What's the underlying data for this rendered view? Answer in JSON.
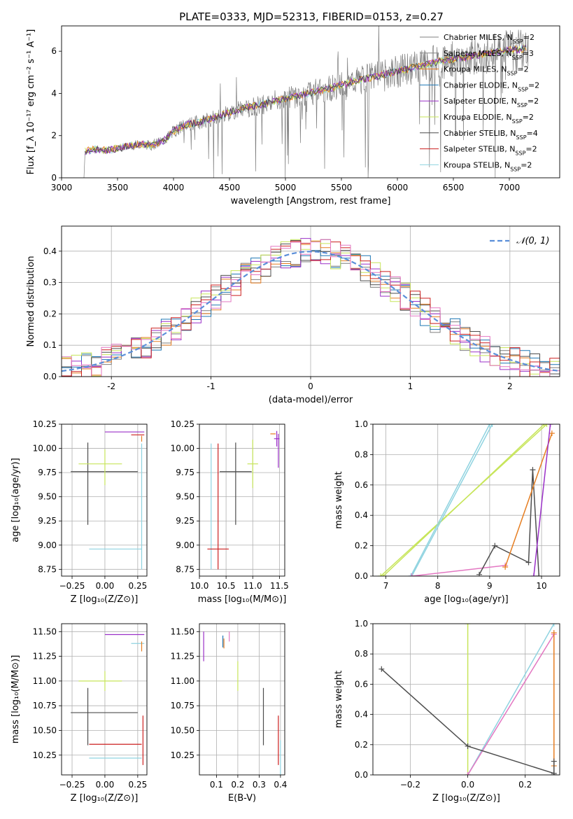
{
  "title": "PLATE=0333, MJD=52313, FIBERID=0153, z=0.27",
  "colors": {
    "chabrier_miles": "#7f7f7f",
    "salpeter_miles": "#808080",
    "kroupa_miles": "#e67e22",
    "chabrier_elodie": "#1f77b4",
    "salpeter_elodie": "#9b30c8",
    "kroupa_elodie": "#c7e55a",
    "chabrier_stelib": "#4d4d4d",
    "salpeter_stelib": "#cc1f1f",
    "kroupa_stelib": "#8fd3e0",
    "pink": "#e377c2",
    "dashed": "#5b8fd9"
  },
  "chart_data": [
    {
      "type": "line",
      "name": "spectrum",
      "xlabel": "wavelength [Angstrom, rest frame]",
      "ylabel": "Flux [f_λ 10⁻¹⁷ erg cm⁻² s⁻¹ A⁻¹]",
      "xlim": [
        3000,
        7450
      ],
      "ylim": [
        0,
        7.2
      ],
      "xticks": [
        3000,
        3500,
        4000,
        4500,
        5000,
        5500,
        6000,
        6500,
        7000
      ],
      "yticks": [
        0,
        2,
        4,
        6
      ],
      "grid": false,
      "legend_position": "top-right",
      "legend": [
        {
          "label": "Chabrier MILES, N",
          "sub": "SSP",
          "suffix": "=2",
          "color_key": "chabrier_miles"
        },
        {
          "label": "Salpeter MILES, N",
          "sub": "SSP",
          "suffix": "=3",
          "color_key": "salpeter_miles"
        },
        {
          "label": "Kroupa MILES, N",
          "sub": "SSP",
          "suffix": "=2",
          "color_key": "kroupa_miles"
        },
        {
          "label": "Chabrier ELODIE, N",
          "sub": "SSP",
          "suffix": "=2",
          "color_key": "chabrier_elodie"
        },
        {
          "label": "Salpeter ELODIE, N",
          "sub": "SSP",
          "suffix": "=2",
          "color_key": "salpeter_elodie"
        },
        {
          "label": "Kroupa ELODIE, N",
          "sub": "SSP",
          "suffix": "=2",
          "color_key": "kroupa_elodie"
        },
        {
          "label": "Chabrier STELIB, N",
          "sub": "SSP",
          "suffix": "=4",
          "color_key": "chabrier_stelib"
        },
        {
          "label": "Salpeter STELIB, N",
          "sub": "SSP",
          "suffix": "=2",
          "color_key": "salpeter_stelib"
        },
        {
          "label": "Kroupa STELIB, N",
          "sub": "SSP",
          "suffix": "=2",
          "color_key": "kroupa_stelib"
        }
      ],
      "continuum": {
        "x": [
          3200,
          3300,
          3400,
          3500,
          3600,
          3700,
          3800,
          3900,
          4000,
          4100,
          4200,
          4300,
          4400,
          4500,
          4600,
          4800,
          5000,
          5200,
          5400,
          5600,
          5800,
          6000,
          6200,
          6400,
          6600,
          6800,
          7000,
          7200
        ],
        "y": [
          1.25,
          1.35,
          1.3,
          1.4,
          1.5,
          1.6,
          1.55,
          1.7,
          2.2,
          2.5,
          2.6,
          2.75,
          2.9,
          3.1,
          3.25,
          3.5,
          3.75,
          4.0,
          4.25,
          4.55,
          4.8,
          5.05,
          5.3,
          5.55,
          5.7,
          5.9,
          6.05,
          6.15
        ]
      }
    },
    {
      "type": "bar",
      "name": "residual-histogram",
      "xlabel": "(data-model)/error",
      "ylabel": "Normed distribution",
      "xlim": [
        -2.5,
        2.5
      ],
      "ylim": [
        0,
        0.48
      ],
      "xticks": [
        -2,
        -1,
        0,
        1,
        2
      ],
      "yticks": [
        0.0,
        0.1,
        0.2,
        0.3,
        0.4
      ],
      "grid": true,
      "legend_position": "top-right",
      "legend_label": "𝒩(0, 1)",
      "bin_width": 0.1,
      "series": [
        {
          "color_key": "chabrier_miles",
          "phase": 0.3
        },
        {
          "color_key": "kroupa_miles",
          "phase": 1.1
        },
        {
          "color_key": "chabrier_elodie",
          "phase": 2.0
        },
        {
          "color_key": "salpeter_elodie",
          "phase": 2.9
        },
        {
          "color_key": "kroupa_elodie",
          "phase": 3.7
        },
        {
          "color_key": "chabrier_stelib",
          "phase": 4.6
        },
        {
          "color_key": "salpeter_stelib",
          "phase": 5.4
        },
        {
          "color_key": "pink",
          "phase": 6.2
        }
      ],
      "gaussian": {
        "mean": 0,
        "sigma": 1
      }
    },
    {
      "type": "scatter",
      "name": "age-vs-Z",
      "xlabel": "Z [log₁₀(Z/Z⊙)]",
      "ylabel": "age  [log₁₀(age/yr)]",
      "xlim": [
        -0.33,
        0.32
      ],
      "ylim": [
        8.68,
        10.25
      ],
      "xticks": [
        -0.25,
        0.0,
        0.25
      ],
      "xticklabels": [
        "−0.25",
        "0.00",
        "0.25"
      ],
      "yticks": [
        8.75,
        9.0,
        9.25,
        9.5,
        9.75,
        10.0,
        10.25
      ],
      "yticklabels": [
        "8.75",
        "9.00",
        "9.25",
        "9.50",
        "9.75",
        "10.00",
        "10.25"
      ],
      "grid": true,
      "errorbars": [
        {
          "x": -0.13,
          "y": 9.76,
          "xerr": [
            0.13,
            0.38
          ],
          "yerr": [
            0.55,
            0.3
          ],
          "color_key": "chabrier_stelib"
        },
        {
          "x": 0.0,
          "y": 9.84,
          "xerr": [
            0.2,
            0.13
          ],
          "yerr": [
            0.22,
            0.15
          ],
          "color_key": "kroupa_elodie"
        },
        {
          "x": 0.08,
          "y": 8.96,
          "xerr": [
            0.2,
            0.2
          ],
          "yerr": [
            0.0,
            0.0
          ],
          "color_key": "kroupa_stelib"
        },
        {
          "x": 0.28,
          "y": 9.4,
          "xerr": [
            0.0,
            0.0
          ],
          "yerr": [
            0.65,
            0.65
          ],
          "color_key": "kroupa_stelib"
        },
        {
          "x": 0.15,
          "y": 10.17,
          "xerr": [
            0.15,
            0.15
          ],
          "yerr": [
            0.0,
            0.0
          ],
          "color_key": "salpeter_elodie"
        },
        {
          "x": 0.25,
          "y": 10.14,
          "xerr": [
            0.05,
            0.05
          ],
          "yerr": [
            0.0,
            0.0
          ],
          "color_key": "salpeter_stelib"
        },
        {
          "x": 0.28,
          "y": 10.1,
          "xerr": [
            0.0,
            0.0
          ],
          "yerr": [
            0.03,
            0.03
          ],
          "color_key": "kroupa_miles"
        }
      ]
    },
    {
      "type": "scatter",
      "name": "age-vs-mass",
      "xlabel": "mass [log₁₀(M/M⊙)]",
      "ylabel": "",
      "xlim": [
        10.0,
        11.6
      ],
      "ylim": [
        8.68,
        10.25
      ],
      "xticks": [
        10.0,
        10.5,
        11.0,
        11.5
      ],
      "xticklabels": [
        "10.0",
        "10.5",
        "11.0",
        "11.5"
      ],
      "yticks": [
        8.75,
        9.0,
        9.25,
        9.5,
        9.75,
        10.0,
        10.25
      ],
      "yticklabels": [
        "8.75",
        "9.00",
        "9.25",
        "9.50",
        "9.75",
        "10.00",
        "10.25"
      ],
      "grid": true,
      "errorbars": [
        {
          "x": 10.68,
          "y": 9.76,
          "xerr": [
            0.3,
            0.3
          ],
          "yerr": [
            0.55,
            0.3
          ],
          "color_key": "chabrier_stelib"
        },
        {
          "x": 10.35,
          "y": 9.4,
          "xerr": [
            0.0,
            0.0
          ],
          "yerr": [
            0.65,
            0.65
          ],
          "color_key": "salpeter_stelib"
        },
        {
          "x": 10.22,
          "y": 9.4,
          "xerr": [
            0.0,
            0.0
          ],
          "yerr": [
            0.65,
            0.65
          ],
          "color_key": "kroupa_stelib"
        },
        {
          "x": 10.35,
          "y": 8.96,
          "xerr": [
            0.2,
            0.2
          ],
          "yerr": [
            0.0,
            0.0
          ],
          "color_key": "salpeter_stelib"
        },
        {
          "x": 11.0,
          "y": 9.84,
          "xerr": [
            0.1,
            0.1
          ],
          "yerr": [
            0.25,
            0.25
          ],
          "color_key": "kroupa_elodie"
        },
        {
          "x": 11.45,
          "y": 10.1,
          "xerr": [
            0.05,
            0.05
          ],
          "yerr": [
            0.08,
            0.08
          ],
          "color_key": "salpeter_elodie"
        },
        {
          "x": 11.48,
          "y": 10.05,
          "xerr": [
            0.0,
            0.0
          ],
          "yerr": [
            0.25,
            0.1
          ],
          "color_key": "salpeter_elodie"
        },
        {
          "x": 11.38,
          "y": 10.15,
          "xerr": [
            0.05,
            0.05
          ],
          "yerr": [
            0.0,
            0.0
          ],
          "color_key": "kroupa_miles"
        }
      ]
    },
    {
      "type": "line",
      "name": "mass-weight-vs-age",
      "xlabel": "age  [log₁₀(age/yr)]",
      "ylabel": "mass weight",
      "xlim": [
        6.75,
        10.35
      ],
      "ylim": [
        0,
        1.0
      ],
      "xticks": [
        7,
        8,
        9,
        10
      ],
      "yticks": [
        0.0,
        0.2,
        0.4,
        0.6,
        0.8,
        1.0
      ],
      "yticklabels": [
        "0.0",
        "0.2",
        "0.4",
        "0.6",
        "0.8",
        "1.0"
      ],
      "grid": true,
      "series": [
        {
          "color_key": "kroupa_elodie",
          "x": [
            6.9,
            10.1
          ],
          "y": [
            0.0,
            1.0
          ]
        },
        {
          "color_key": "kroupa_elodie",
          "x": [
            6.95,
            10.05
          ],
          "y": [
            0.0,
            1.0
          ]
        },
        {
          "color_key": "kroupa_stelib",
          "x": [
            7.48,
            9.0
          ],
          "y": [
            0.0,
            1.0
          ]
        },
        {
          "color_key": "kroupa_stelib",
          "x": [
            7.5,
            9.05
          ],
          "y": [
            0.0,
            1.0
          ]
        },
        {
          "color_key": "pink",
          "x": [
            7.5,
            9.3
          ],
          "y": [
            0.0,
            0.07
          ]
        },
        {
          "color_key": "chabrier_stelib",
          "x": [
            8.8,
            9.1,
            9.75,
            9.83,
            9.95
          ],
          "y": [
            0.01,
            0.2,
            0.09,
            0.7,
            0.0
          ]
        },
        {
          "color_key": "kroupa_miles",
          "x": [
            9.3,
            10.2
          ],
          "y": [
            0.06,
            0.94
          ]
        },
        {
          "color_key": "salpeter_elodie",
          "x": [
            9.85,
            10.17
          ],
          "y": [
            0.0,
            1.0
          ]
        }
      ]
    },
    {
      "type": "scatter",
      "name": "mass-vs-Z",
      "xlabel": "Z [log₁₀(Z/Z⊙)]",
      "ylabel": "mass [log₁₀(M/M⊙)]",
      "xlim": [
        -0.33,
        0.32
      ],
      "ylim": [
        10.05,
        11.58
      ],
      "xticks": [
        -0.25,
        0.0,
        0.25
      ],
      "xticklabels": [
        "−0.25",
        "0.00",
        "0.25"
      ],
      "yticks": [
        10.25,
        10.5,
        10.75,
        11.0,
        11.25,
        11.5
      ],
      "yticklabels": [
        "10.25",
        "10.50",
        "10.75",
        "11.00",
        "11.25",
        "11.50"
      ],
      "grid": true,
      "errorbars": [
        {
          "x": -0.13,
          "y": 10.68,
          "xerr": [
            0.13,
            0.38
          ],
          "yerr": [
            0.33,
            0.25
          ],
          "color_key": "chabrier_stelib"
        },
        {
          "x": 0.0,
          "y": 11.0,
          "xerr": [
            0.2,
            0.13
          ],
          "yerr": [
            0.1,
            0.1
          ],
          "color_key": "kroupa_elodie"
        },
        {
          "x": 0.08,
          "y": 10.36,
          "xerr": [
            0.2,
            0.2
          ],
          "yerr": [
            0.0,
            0.0
          ],
          "color_key": "salpeter_stelib"
        },
        {
          "x": 0.08,
          "y": 10.22,
          "xerr": [
            0.2,
            0.2
          ],
          "yerr": [
            0.0,
            0.0
          ],
          "color_key": "kroupa_stelib"
        },
        {
          "x": 0.29,
          "y": 10.4,
          "xerr": [
            0.0,
            0.0
          ],
          "yerr": [
            0.25,
            0.25
          ],
          "color_key": "salpeter_stelib"
        },
        {
          "x": 0.15,
          "y": 11.47,
          "xerr": [
            0.15,
            0.15
          ],
          "yerr": [
            0.0,
            0.0
          ],
          "color_key": "salpeter_elodie"
        },
        {
          "x": 0.25,
          "y": 11.38,
          "xerr": [
            0.05,
            0.05
          ],
          "yerr": [
            0.0,
            0.0
          ],
          "color_key": "kroupa_stelib"
        },
        {
          "x": 0.28,
          "y": 11.35,
          "xerr": [
            0.0,
            0.0
          ],
          "yerr": [
            0.05,
            0.05
          ],
          "color_key": "kroupa_miles"
        }
      ]
    },
    {
      "type": "scatter",
      "name": "mass-vs-ebv",
      "xlabel": "E(B-V)",
      "ylabel": "",
      "xlim": [
        0.02,
        0.42
      ],
      "ylim": [
        10.05,
        11.58
      ],
      "xticks": [
        0.1,
        0.2,
        0.3,
        0.4
      ],
      "xticklabels": [
        "0.1",
        "0.2",
        "0.3",
        "0.4"
      ],
      "yticks": [
        10.25,
        10.5,
        10.75,
        11.0,
        11.25,
        11.5
      ],
      "yticklabels": [
        "10.25",
        "10.50",
        "10.75",
        "11.00",
        "11.25",
        "11.50"
      ],
      "grid": true,
      "errorbars": [
        {
          "x": 0.04,
          "y": 11.35,
          "xerr": [
            0.0,
            0.0
          ],
          "yerr": [
            0.15,
            0.15
          ],
          "color_key": "salpeter_elodie"
        },
        {
          "x": 0.13,
          "y": 11.4,
          "xerr": [
            0.0,
            0.0
          ],
          "yerr": [
            0.06,
            0.06
          ],
          "color_key": "chabrier_elodie"
        },
        {
          "x": 0.135,
          "y": 11.38,
          "xerr": [
            0.0,
            0.0
          ],
          "yerr": [
            0.05,
            0.05
          ],
          "color_key": "kroupa_miles"
        },
        {
          "x": 0.16,
          "y": 11.45,
          "xerr": [
            0.0,
            0.0
          ],
          "yerr": [
            0.05,
            0.05
          ],
          "color_key": "pink"
        },
        {
          "x": 0.2,
          "y": 11.05,
          "xerr": [
            0.0,
            0.0
          ],
          "yerr": [
            0.15,
            0.15
          ],
          "color_key": "kroupa_elodie"
        },
        {
          "x": 0.32,
          "y": 10.68,
          "xerr": [
            0.0,
            0.0
          ],
          "yerr": [
            0.33,
            0.25
          ],
          "color_key": "chabrier_stelib"
        },
        {
          "x": 0.39,
          "y": 10.4,
          "xerr": [
            0.0,
            0.0
          ],
          "yerr": [
            0.25,
            0.25
          ],
          "color_key": "salpeter_stelib"
        },
        {
          "x": 0.4,
          "y": 10.2,
          "xerr": [
            0.0,
            0.0
          ],
          "yerr": [
            0.2,
            0.2
          ],
          "color_key": "kroupa_stelib"
        }
      ]
    },
    {
      "type": "line",
      "name": "mass-weight-vs-Z",
      "xlabel": "Z [log₁₀(Z/Z⊙)]",
      "ylabel": "mass weight",
      "xlim": [
        -0.33,
        0.32
      ],
      "ylim": [
        0,
        1.0
      ],
      "xticks": [
        -0.2,
        0.0,
        0.2
      ],
      "xticklabels": [
        "−0.2",
        "0.0",
        "0.2"
      ],
      "yticks": [
        0.0,
        0.2,
        0.4,
        0.6,
        0.8,
        1.0
      ],
      "yticklabels": [
        "0.0",
        "0.2",
        "0.4",
        "0.6",
        "0.8",
        "1.0"
      ],
      "grid": true,
      "series": [
        {
          "color_key": "kroupa_elodie",
          "x": [
            0.0,
            0.0
          ],
          "y": [
            0.0,
            1.0
          ]
        },
        {
          "color_key": "kroupa_stelib",
          "x": [
            0.0,
            0.3
          ],
          "y": [
            0.0,
            1.0
          ]
        },
        {
          "color_key": "pink",
          "x": [
            0.0,
            0.3
          ],
          "y": [
            0.0,
            0.93
          ]
        },
        {
          "color_key": "kroupa_miles",
          "x": [
            0.3,
            0.3
          ],
          "y": [
            0.06,
            0.94
          ]
        },
        {
          "color_key": "chabrier_stelib",
          "x": [
            -0.3,
            0.0,
            0.3
          ],
          "y": [
            0.7,
            0.19,
            0.01
          ]
        },
        {
          "color_key": "chabrier_stelib",
          "x": [
            0.3,
            0.3
          ],
          "y": [
            0.09,
            0.0
          ]
        }
      ]
    }
  ]
}
